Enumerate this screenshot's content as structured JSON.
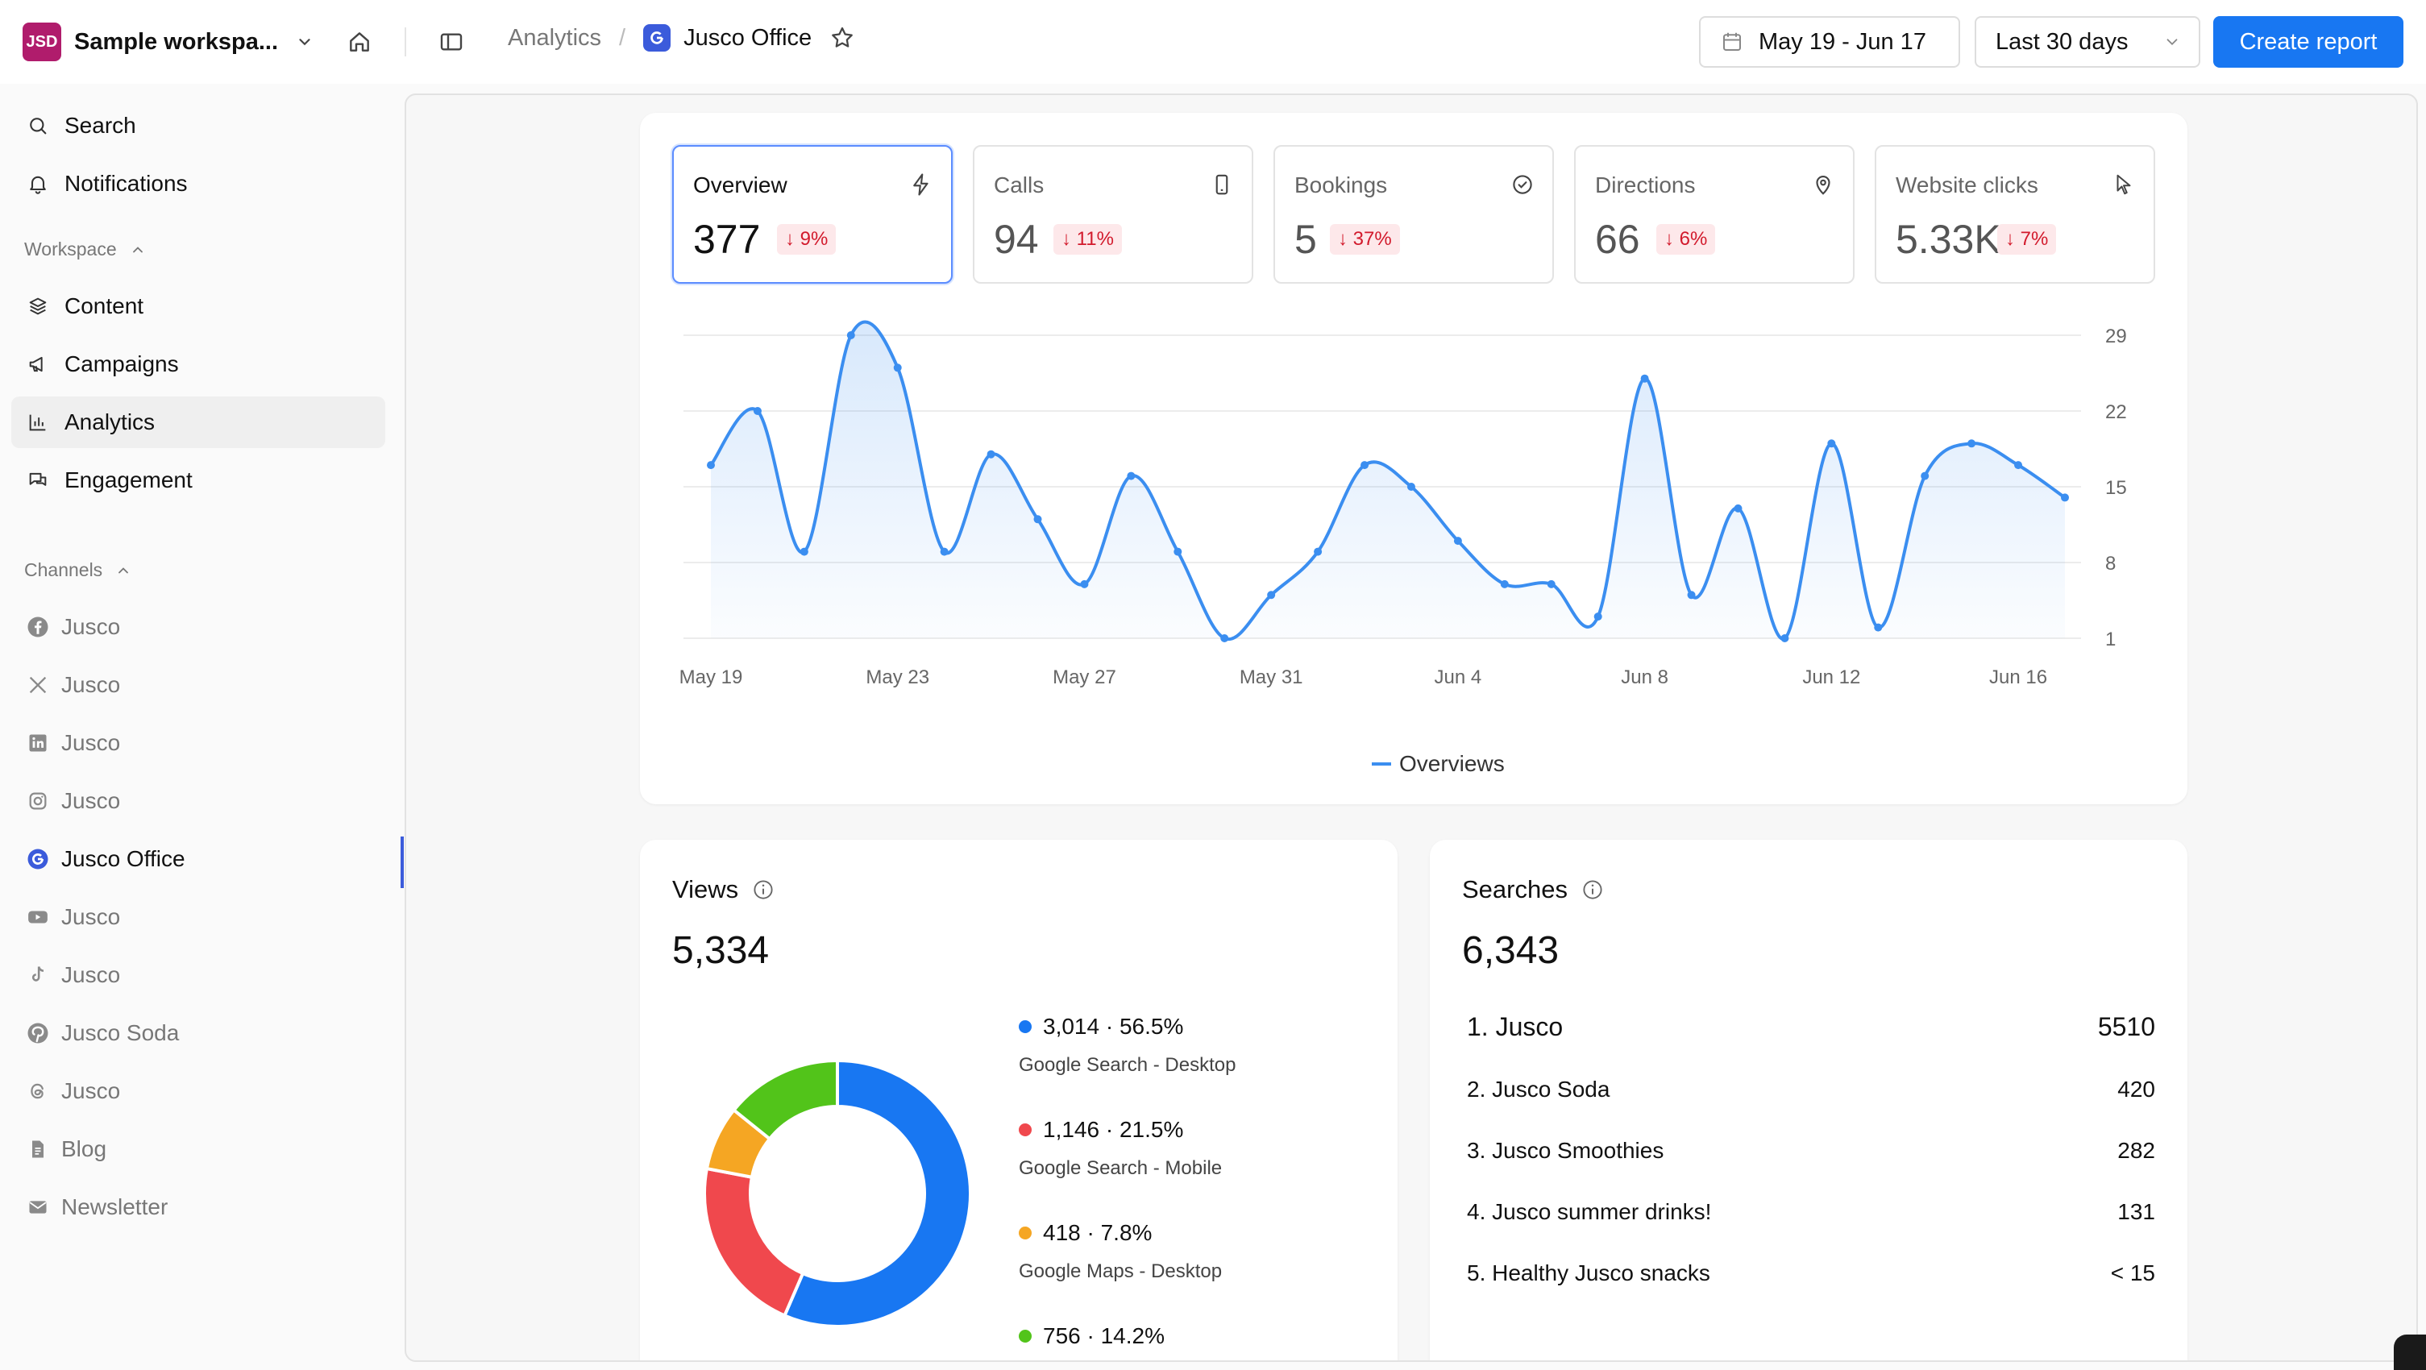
{
  "workspace": {
    "logo_text": "JSD",
    "name": "Sample workspa..."
  },
  "breadcrumb": {
    "section": "Analytics",
    "separator": "/",
    "page": "Jusco Office"
  },
  "toolbar": {
    "date_range": "May 19 -  Jun 17",
    "range_select": "Last 30 days",
    "create_label": "Create report"
  },
  "sidebar": {
    "top_items": [
      {
        "label": "Search",
        "icon": "search-icon"
      },
      {
        "label": "Notifications",
        "icon": "bell-icon"
      }
    ],
    "workspace_header": "Workspace",
    "workspace_items": [
      {
        "label": "Content",
        "icon": "layers-icon"
      },
      {
        "label": "Campaigns",
        "icon": "megaphone-icon"
      },
      {
        "label": "Analytics",
        "icon": "bar-chart-icon"
      },
      {
        "label": "Engagement",
        "icon": "chat-icon"
      }
    ],
    "channels_header": "Channels",
    "channels": [
      {
        "label": "Jusco",
        "icon": "facebook-icon"
      },
      {
        "label": "Jusco",
        "icon": "x-icon"
      },
      {
        "label": "Jusco",
        "icon": "linkedin-icon"
      },
      {
        "label": "Jusco",
        "icon": "instagram-icon"
      },
      {
        "label": "Jusco Office",
        "icon": "google-icon"
      },
      {
        "label": "Jusco",
        "icon": "youtube-icon"
      },
      {
        "label": "Jusco",
        "icon": "tiktok-icon"
      },
      {
        "label": "Jusco Soda",
        "icon": "pinterest-icon"
      },
      {
        "label": "Jusco",
        "icon": "threads-icon"
      },
      {
        "label": "Blog",
        "icon": "document-icon"
      },
      {
        "label": "Newsletter",
        "icon": "mail-icon"
      }
    ]
  },
  "metrics": [
    {
      "label": "Overview",
      "value": "377",
      "delta": "↓ 9%",
      "icon": "bolt-icon"
    },
    {
      "label": "Calls",
      "value": "94",
      "delta": "↓ 11%",
      "icon": "phone-icon"
    },
    {
      "label": "Bookings",
      "value": "5",
      "delta": "↓ 37%",
      "icon": "check-circle-icon"
    },
    {
      "label": "Directions",
      "value": "66",
      "delta": "↓ 6%",
      "icon": "pin-icon"
    },
    {
      "label": "Website clicks",
      "value": "5.33K",
      "delta": "↓ 7%",
      "icon": "cursor-icon"
    }
  ],
  "chart_data": {
    "type": "area",
    "x": [
      "May 19",
      "May 20",
      "May 21",
      "May 22",
      "May 23",
      "May 24",
      "May 25",
      "May 26",
      "May 27",
      "May 28",
      "May 29",
      "May 30",
      "May 31",
      "Jun 1",
      "Jun 2",
      "Jun 3",
      "Jun 4",
      "Jun 5",
      "Jun 6",
      "Jun 7",
      "Jun 8",
      "Jun 9",
      "Jun 10",
      "Jun 11",
      "Jun 12",
      "Jun 13",
      "Jun 14",
      "Jun 15",
      "Jun 16",
      "Jun 17"
    ],
    "x_tick_labels": [
      "May 19",
      "May 23",
      "May 27",
      "May 31",
      "Jun 4",
      "Jun 8",
      "Jun 12",
      "Jun 16"
    ],
    "y_ticks": [
      "29",
      "22",
      "15",
      "8",
      "1"
    ],
    "ylim": [
      1,
      29
    ],
    "series": [
      {
        "name": "Overviews",
        "color": "#3b8ef0",
        "values": [
          17,
          22,
          9,
          29,
          26,
          9,
          18,
          12,
          6,
          16,
          9,
          1,
          5,
          9,
          17,
          15,
          10,
          6,
          6,
          3,
          25,
          5,
          13,
          1,
          19,
          2,
          16,
          19,
          17,
          14
        ]
      }
    ],
    "legend": "bottom"
  },
  "views": {
    "title": "Views",
    "total": "5,334",
    "segments": [
      {
        "value": "3,014 · 56.5%",
        "label": "Google Search - Desktop",
        "pct": 56.5,
        "color": "#1877f2"
      },
      {
        "value": "1,146 · 21.5%",
        "label": "Google Search - Mobile",
        "pct": 21.5,
        "color": "#f0484d"
      },
      {
        "value": "418 · 7.8%",
        "label": "Google Maps - Desktop",
        "pct": 7.8,
        "color": "#f5a623"
      },
      {
        "value": "756 · 14.2%",
        "label": "",
        "pct": 14.2,
        "color": "#52c41a"
      }
    ]
  },
  "searches": {
    "title": "Searches",
    "total": "6,343",
    "rows": [
      {
        "term": "1. Jusco",
        "count": "5510"
      },
      {
        "term": "2. Jusco Soda",
        "count": "420"
      },
      {
        "term": "3. Jusco Smoothies",
        "count": "282"
      },
      {
        "term": "4. Jusco summer drinks!",
        "count": "131"
      },
      {
        "term": "5. Healthy Jusco snacks",
        "count": "< 15"
      }
    ]
  }
}
